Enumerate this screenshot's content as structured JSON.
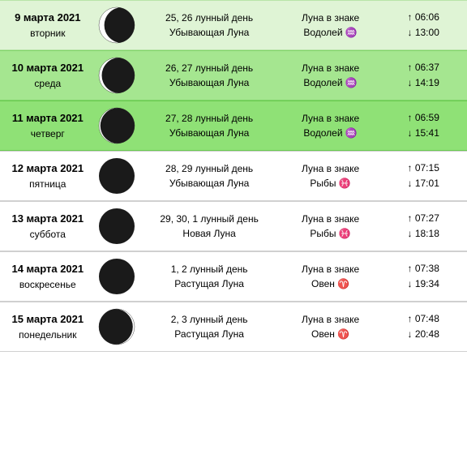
{
  "colors": {
    "bg_green_light": "#dff4d5",
    "bg_green_mid": "#a5e690",
    "bg_green_dark": "#8fe176",
    "bg_white": "#ffffff",
    "border_green_light": "#b8e4a8",
    "border_green_mid": "#7fd468",
    "border_green_dark": "#6acb50",
    "border_gray": "#d0d0d0",
    "moon_dark": "#1a1a1a",
    "moon_light": "#ffffff",
    "text": "#000000"
  },
  "rows": [
    {
      "bg": "bg_green_light",
      "border": "border_green_light",
      "date": "9 марта 2021",
      "weekday": "вторник",
      "lunar_day": "25, 26 лунный день",
      "phase": "Убывающая Луна",
      "sign_label": "Луна в знаке",
      "sign": "Водолей ♒️",
      "rise": "↑ 06:06",
      "set": "↓ 13:00",
      "moon": {
        "type": "waning",
        "crescent_ratio": 0.15
      }
    },
    {
      "bg": "bg_green_mid",
      "border": "border_green_mid",
      "date": "10 марта 2021",
      "weekday": "среда",
      "lunar_day": "26, 27 лунный день",
      "phase": "Убывающая Луна",
      "sign_label": "Луна в знаке",
      "sign": "Водолей ♒️",
      "rise": "↑ 06:37",
      "set": "↓ 14:19",
      "moon": {
        "type": "waning",
        "crescent_ratio": 0.08
      }
    },
    {
      "bg": "bg_green_dark",
      "border": "border_green_dark",
      "date": "11 марта 2021",
      "weekday": "четверг",
      "lunar_day": "27, 28 лунный день",
      "phase": "Убывающая Луна",
      "sign_label": "Луна в знаке",
      "sign": "Водолей ♒️",
      "rise": "↑ 06:59",
      "set": "↓ 15:41",
      "moon": {
        "type": "waning",
        "crescent_ratio": 0.04
      }
    },
    {
      "bg": "bg_white",
      "border": "border_gray",
      "date": "12 марта 2021",
      "weekday": "пятница",
      "lunar_day": "28, 29 лунный день",
      "phase": "Убывающая Луна",
      "sign_label": "Луна в знаке",
      "sign": "Рыбы ♓️",
      "rise": "↑ 07:15",
      "set": "↓ 17:01",
      "moon": {
        "type": "new"
      }
    },
    {
      "bg": "bg_white",
      "border": "border_gray",
      "date": "13 марта 2021",
      "weekday": "суббота",
      "lunar_day": "29, 30, 1 лунный день",
      "phase": "Новая Луна",
      "sign_label": "Луна в знаке",
      "sign": "Рыбы ♓️",
      "rise": "↑ 07:27",
      "set": "↓ 18:18",
      "moon": {
        "type": "new"
      }
    },
    {
      "bg": "bg_white",
      "border": "border_gray",
      "date": "14 марта 2021",
      "weekday": "воскресенье",
      "lunar_day": "1, 2 лунный день",
      "phase": "Растущая Луна",
      "sign_label": "Луна в знаке",
      "sign": "Овен ♈️",
      "rise": "↑ 07:38",
      "set": "↓ 19:34",
      "moon": {
        "type": "new"
      }
    },
    {
      "bg": "bg_white",
      "border": "border_gray",
      "date": "15 марта 2021",
      "weekday": "понедельник",
      "lunar_day": "2, 3 лунный день",
      "phase": "Растущая Луна",
      "sign_label": "Луна в знаке",
      "sign": "Овен ♈️",
      "rise": "↑ 07:48",
      "set": "↓ 20:48",
      "moon": {
        "type": "waxing",
        "crescent_ratio": 0.05
      }
    }
  ]
}
